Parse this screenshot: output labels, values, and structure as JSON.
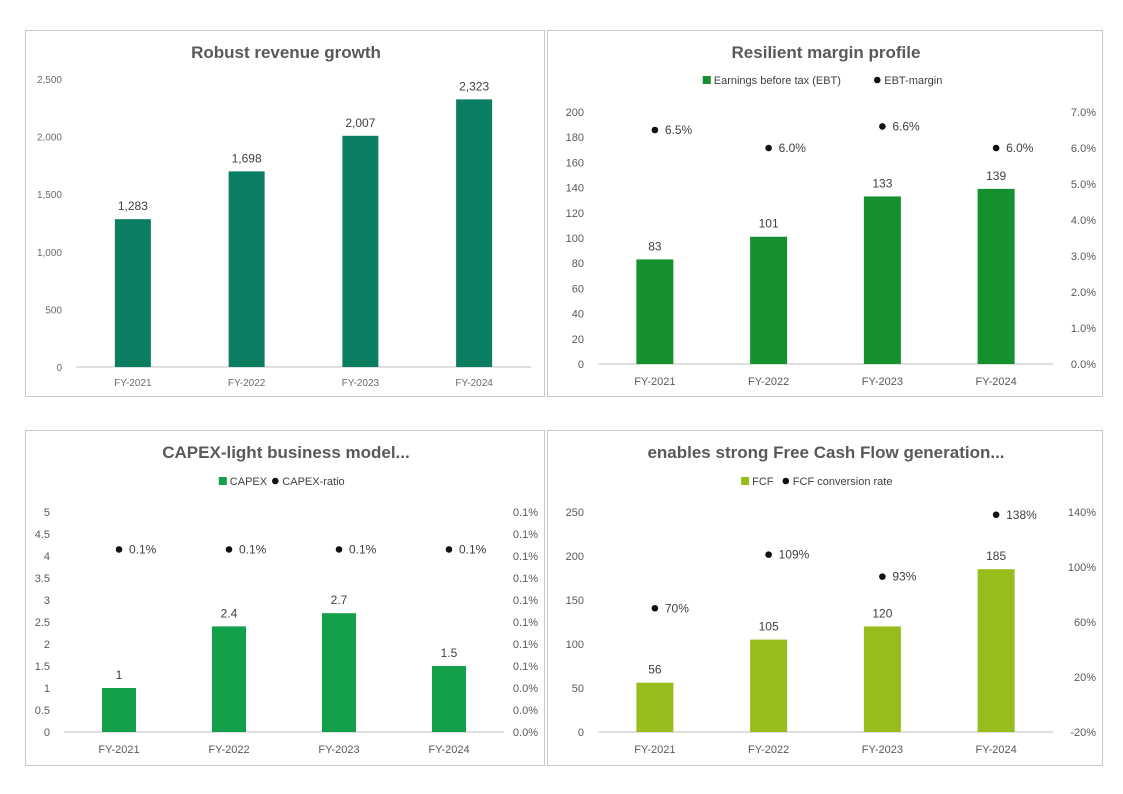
{
  "charts": [
    {
      "title": "Robust revenue growth",
      "type": "bar",
      "categories": [
        "FY-2021",
        "FY-2022",
        "FY-2023",
        "FY-2024"
      ],
      "bar_series": {
        "name": "",
        "values": [
          1283,
          1698,
          2007,
          2323
        ],
        "labels": [
          "1,283",
          "1,698",
          "2,007",
          "2,323"
        ],
        "color": "#0a7d63"
      },
      "y_ticks": [
        "0",
        "500",
        "1,000",
        "1,500",
        "2,000",
        "2,500"
      ],
      "ylim": [
        0,
        2500
      ]
    },
    {
      "title": "Resilient margin profile",
      "type": "bar+scatter",
      "categories": [
        "FY-2021",
        "FY-2022",
        "FY-2023",
        "FY-2024"
      ],
      "bar_series": {
        "name": "Earnings before tax (EBT)",
        "values": [
          83,
          101,
          133,
          139
        ],
        "labels": [
          "83",
          "101",
          "133",
          "139"
        ],
        "color": "#14902f"
      },
      "dot_series": {
        "name": "EBT-margin",
        "values": [
          6.5,
          6.0,
          6.6,
          6.0
        ],
        "labels": [
          "6.5%",
          "6.0%",
          "6.6%",
          "6.0%"
        ]
      },
      "y_ticks": [
        "0",
        "20",
        "40",
        "60",
        "80",
        "100",
        "120",
        "140",
        "160",
        "180",
        "200"
      ],
      "ylim": [
        0,
        200
      ],
      "y2_ticks": [
        "0.0%",
        "1.0%",
        "2.0%",
        "3.0%",
        "4.0%",
        "5.0%",
        "6.0%",
        "7.0%"
      ],
      "y2lim": [
        0,
        7
      ]
    },
    {
      "title": "CAPEX-light business model...",
      "type": "bar+scatter",
      "categories": [
        "FY-2021",
        "FY-2022",
        "FY-2023",
        "FY-2024"
      ],
      "bar_series": {
        "name": "CAPEX",
        "values": [
          1,
          2.4,
          2.7,
          1.5
        ],
        "labels": [
          "1",
          "2.4",
          "2.7",
          "1.5"
        ],
        "color": "#14a04b"
      },
      "dot_series": {
        "name": "CAPEX-ratio",
        "values": [
          0.1,
          0.1,
          0.1,
          0.1
        ],
        "labels": [
          "0.1%",
          "0.1%",
          "0.1%",
          "0.1%"
        ],
        "plot_levels": [
          4.15,
          4.15,
          4.15,
          4.15
        ]
      },
      "y_ticks": [
        "0",
        "0.5",
        "1",
        "1.5",
        "2",
        "2.5",
        "3",
        "3.5",
        "4",
        "4.5",
        "5"
      ],
      "ylim": [
        0,
        5
      ],
      "y2_ticks": [
        "0.0%",
        "0.0%",
        "0.0%",
        "0.1%",
        "0.1%",
        "0.1%",
        "0.1%",
        "0.1%",
        "0.1%",
        "0.1%",
        "0.1%"
      ]
    },
    {
      "title": "enables strong Free Cash Flow generation...",
      "type": "bar+scatter",
      "categories": [
        "FY-2021",
        "FY-2022",
        "FY-2023",
        "FY-2024"
      ],
      "bar_series": {
        "name": "FCF",
        "values": [
          56,
          105,
          120,
          185
        ],
        "labels": [
          "56",
          "105",
          "120",
          "185"
        ],
        "color": "#97bd1c"
      },
      "dot_series": {
        "name": "FCF conversion rate",
        "values": [
          70,
          109,
          93,
          138
        ],
        "labels": [
          "70%",
          "109%",
          "93%",
          "138%"
        ]
      },
      "y_ticks": [
        "0",
        "50",
        "100",
        "150",
        "200",
        "250"
      ],
      "ylim": [
        0,
        250
      ],
      "y2_ticks": [
        "-20%",
        "20%",
        "60%",
        "100%",
        "140%"
      ],
      "y2lim": [
        -20,
        140
      ]
    }
  ]
}
